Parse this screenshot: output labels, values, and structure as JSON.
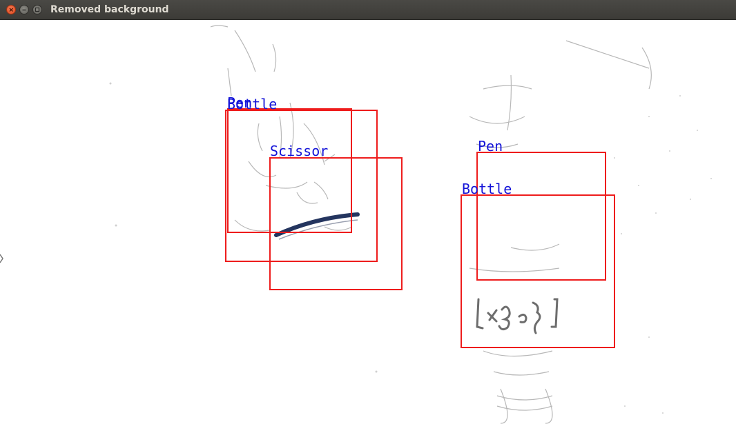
{
  "window": {
    "title": "Removed background"
  },
  "detections": [
    {
      "label": "Pen"
    },
    {
      "label": "Bottle"
    },
    {
      "label": "Scissor"
    },
    {
      "label": "Pen"
    },
    {
      "label": "Bottle"
    }
  ]
}
